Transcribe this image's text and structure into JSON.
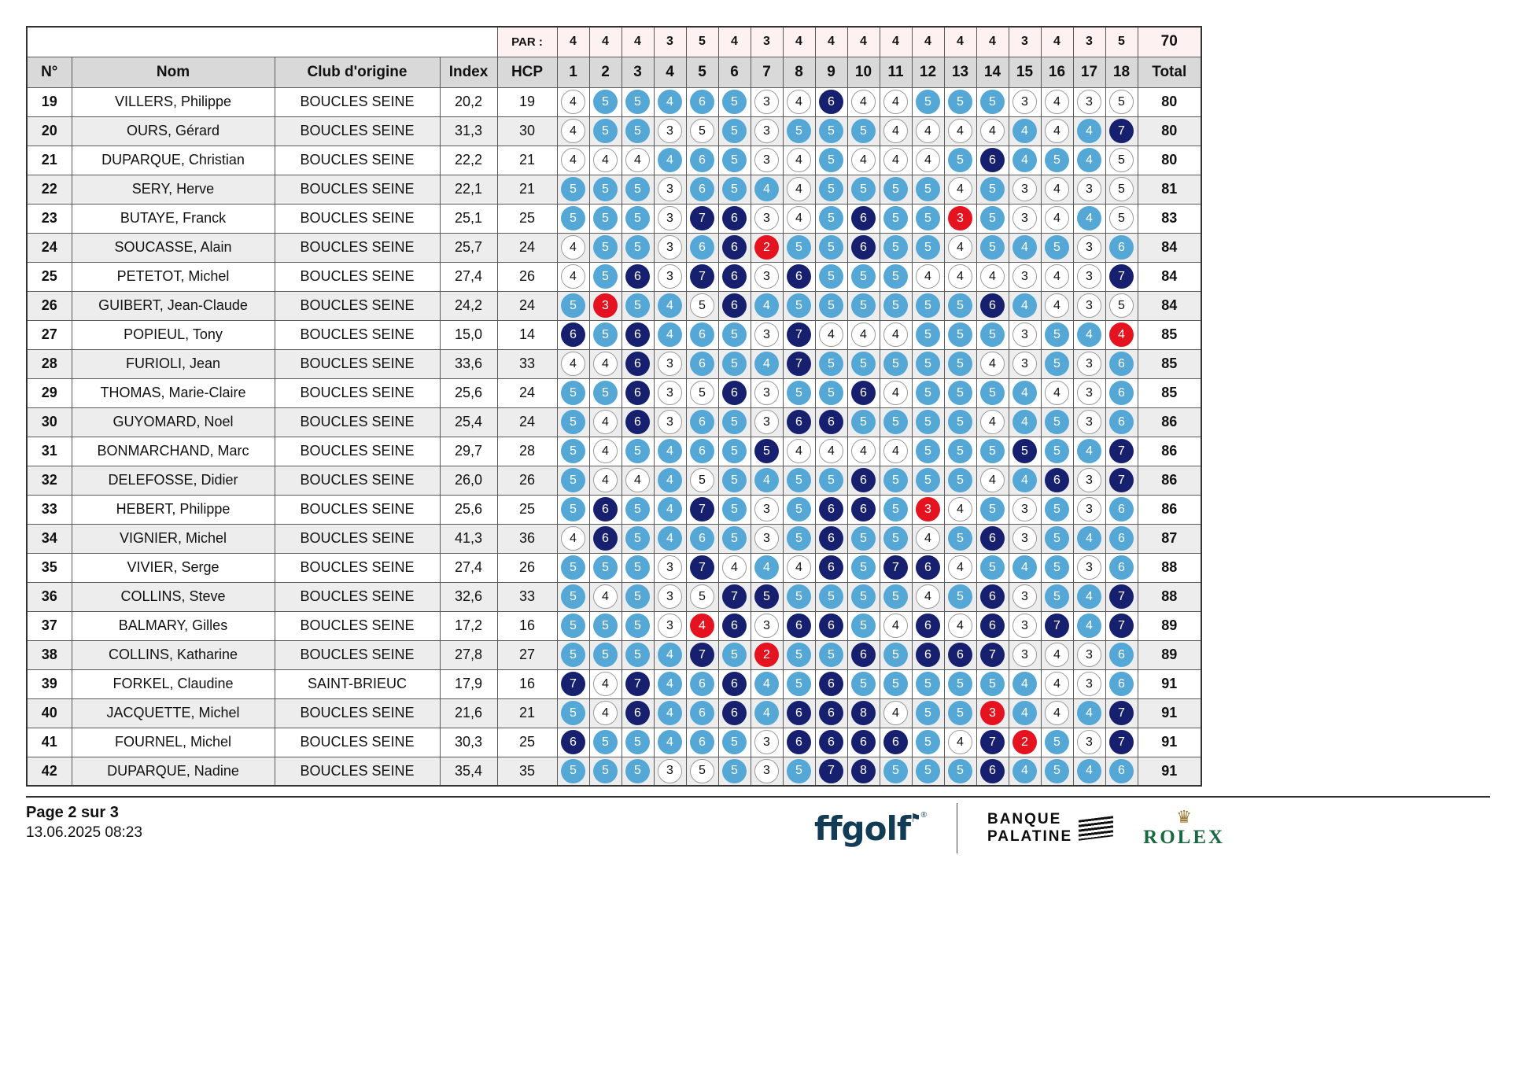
{
  "theme": {
    "bogey": "#55a7d6",
    "double": "#16206e",
    "birdie": "#e4131f",
    "parbg": "#fdf1f1",
    "headbg": "#d9d9d9",
    "grid": "#5a5a5a",
    "ffgolf": "#123c55",
    "rolex": "#1a6840",
    "gold": "#96762e"
  },
  "table": {
    "par_label": "PAR :",
    "par_values": [
      4,
      4,
      4,
      3,
      5,
      4,
      3,
      4,
      4,
      4,
      4,
      4,
      4,
      4,
      3,
      4,
      3,
      5
    ],
    "par_total": 70,
    "columns": [
      "N°",
      "Nom",
      "Club d'origine",
      "Index",
      "HCP",
      "1",
      "2",
      "3",
      "4",
      "5",
      "6",
      "7",
      "8",
      "9",
      "10",
      "11",
      "12",
      "13",
      "14",
      "15",
      "16",
      "17",
      "18",
      "Total"
    ],
    "rows": [
      {
        "num": 19,
        "name": "VILLERS, Philippe",
        "club": "BOUCLES SEINE",
        "index": "20,2",
        "hcp": 19,
        "scores": [
          4,
          5,
          5,
          4,
          6,
          5,
          3,
          4,
          6,
          4,
          4,
          5,
          5,
          5,
          3,
          4,
          3,
          5
        ],
        "total": 80
      },
      {
        "num": 20,
        "name": "OURS, Gérard",
        "club": "BOUCLES SEINE",
        "index": "31,3",
        "hcp": 30,
        "scores": [
          4,
          5,
          5,
          3,
          5,
          5,
          3,
          5,
          5,
          5,
          4,
          4,
          4,
          4,
          4,
          4,
          4,
          7
        ],
        "total": 80
      },
      {
        "num": 21,
        "name": "DUPARQUE, Christian",
        "club": "BOUCLES SEINE",
        "index": "22,2",
        "hcp": 21,
        "scores": [
          4,
          4,
          4,
          4,
          6,
          5,
          3,
          4,
          5,
          4,
          4,
          4,
          5,
          6,
          4,
          5,
          4,
          5
        ],
        "total": 80
      },
      {
        "num": 22,
        "name": "SERY, Herve",
        "club": "BOUCLES SEINE",
        "index": "22,1",
        "hcp": 21,
        "scores": [
          5,
          5,
          5,
          3,
          6,
          5,
          4,
          4,
          5,
          5,
          5,
          5,
          4,
          5,
          3,
          4,
          3,
          5
        ],
        "total": 81
      },
      {
        "num": 23,
        "name": "BUTAYE, Franck",
        "club": "BOUCLES SEINE",
        "index": "25,1",
        "hcp": 25,
        "scores": [
          5,
          5,
          5,
          3,
          7,
          6,
          3,
          4,
          5,
          6,
          5,
          5,
          3,
          5,
          3,
          4,
          4,
          5
        ],
        "total": 83
      },
      {
        "num": 24,
        "name": "SOUCASSE, Alain",
        "club": "BOUCLES SEINE",
        "index": "25,7",
        "hcp": 24,
        "scores": [
          4,
          5,
          5,
          3,
          6,
          6,
          2,
          5,
          5,
          6,
          5,
          5,
          4,
          5,
          4,
          5,
          3,
          6
        ],
        "total": 84
      },
      {
        "num": 25,
        "name": "PETETOT, Michel",
        "club": "BOUCLES SEINE",
        "index": "27,4",
        "hcp": 26,
        "scores": [
          4,
          5,
          6,
          3,
          7,
          6,
          3,
          6,
          5,
          5,
          5,
          4,
          4,
          4,
          3,
          4,
          3,
          7
        ],
        "total": 84
      },
      {
        "num": 26,
        "name": "GUIBERT, Jean-Claude",
        "club": "BOUCLES SEINE",
        "index": "24,2",
        "hcp": 24,
        "scores": [
          5,
          3,
          5,
          4,
          5,
          6,
          4,
          5,
          5,
          5,
          5,
          5,
          5,
          6,
          4,
          4,
          3,
          5
        ],
        "total": 84
      },
      {
        "num": 27,
        "name": "POPIEUL, Tony",
        "club": "BOUCLES SEINE",
        "index": "15,0",
        "hcp": 14,
        "scores": [
          6,
          5,
          6,
          4,
          6,
          5,
          3,
          7,
          4,
          4,
          4,
          5,
          5,
          5,
          3,
          5,
          4,
          4
        ],
        "total": 85
      },
      {
        "num": 28,
        "name": "FURIOLI, Jean",
        "club": "BOUCLES SEINE",
        "index": "33,6",
        "hcp": 33,
        "scores": [
          4,
          4,
          6,
          3,
          6,
          5,
          4,
          7,
          5,
          5,
          5,
          5,
          5,
          4,
          3,
          5,
          3,
          6
        ],
        "total": 85
      },
      {
        "num": 29,
        "name": "THOMAS, Marie-Claire",
        "club": "BOUCLES SEINE",
        "index": "25,6",
        "hcp": 24,
        "scores": [
          5,
          5,
          6,
          3,
          5,
          6,
          3,
          5,
          5,
          6,
          4,
          5,
          5,
          5,
          4,
          4,
          3,
          6
        ],
        "total": 85
      },
      {
        "num": 30,
        "name": "GUYOMARD, Noel",
        "club": "BOUCLES SEINE",
        "index": "25,4",
        "hcp": 24,
        "scores": [
          5,
          4,
          6,
          3,
          6,
          5,
          3,
          6,
          6,
          5,
          5,
          5,
          5,
          4,
          4,
          5,
          3,
          6
        ],
        "total": 86
      },
      {
        "num": 31,
        "name": "BONMARCHAND, Marc",
        "club": "BOUCLES SEINE",
        "index": "29,7",
        "hcp": 28,
        "scores": [
          5,
          4,
          5,
          4,
          6,
          5,
          5,
          4,
          4,
          4,
          4,
          5,
          5,
          5,
          5,
          5,
          4,
          7
        ],
        "total": 86
      },
      {
        "num": 32,
        "name": "DELEFOSSE, Didier",
        "club": "BOUCLES SEINE",
        "index": "26,0",
        "hcp": 26,
        "scores": [
          5,
          4,
          4,
          4,
          5,
          5,
          4,
          5,
          5,
          6,
          5,
          5,
          5,
          4,
          4,
          6,
          3,
          7
        ],
        "total": 86
      },
      {
        "num": 33,
        "name": "HEBERT, Philippe",
        "club": "BOUCLES SEINE",
        "index": "25,6",
        "hcp": 25,
        "scores": [
          5,
          6,
          5,
          4,
          7,
          5,
          3,
          5,
          6,
          6,
          5,
          3,
          4,
          5,
          3,
          5,
          3,
          6
        ],
        "total": 86
      },
      {
        "num": 34,
        "name": "VIGNIER, Michel",
        "club": "BOUCLES SEINE",
        "index": "41,3",
        "hcp": 36,
        "scores": [
          4,
          6,
          5,
          4,
          6,
          5,
          3,
          5,
          6,
          5,
          5,
          4,
          5,
          6,
          3,
          5,
          4,
          6
        ],
        "total": 87
      },
      {
        "num": 35,
        "name": "VIVIER, Serge",
        "club": "BOUCLES SEINE",
        "index": "27,4",
        "hcp": 26,
        "scores": [
          5,
          5,
          5,
          3,
          7,
          4,
          4,
          4,
          6,
          5,
          7,
          6,
          4,
          5,
          4,
          5,
          3,
          6
        ],
        "total": 88
      },
      {
        "num": 36,
        "name": "COLLINS, Steve",
        "club": "BOUCLES SEINE",
        "index": "32,6",
        "hcp": 33,
        "scores": [
          5,
          4,
          5,
          3,
          5,
          7,
          5,
          5,
          5,
          5,
          5,
          4,
          5,
          6,
          3,
          5,
          4,
          7
        ],
        "total": 88
      },
      {
        "num": 37,
        "name": "BALMARY, Gilles",
        "club": "BOUCLES SEINE",
        "index": "17,2",
        "hcp": 16,
        "scores": [
          5,
          5,
          5,
          3,
          4,
          6,
          3,
          6,
          6,
          5,
          4,
          6,
          4,
          6,
          3,
          7,
          4,
          7
        ],
        "total": 89
      },
      {
        "num": 38,
        "name": "COLLINS, Katharine",
        "club": "BOUCLES SEINE",
        "index": "27,8",
        "hcp": 27,
        "scores": [
          5,
          5,
          5,
          4,
          7,
          5,
          2,
          5,
          5,
          6,
          5,
          6,
          6,
          7,
          3,
          4,
          3,
          6
        ],
        "total": 89
      },
      {
        "num": 39,
        "name": "FORKEL, Claudine",
        "club": "SAINT-BRIEUC",
        "index": "17,9",
        "hcp": 16,
        "scores": [
          7,
          4,
          7,
          4,
          6,
          6,
          4,
          5,
          6,
          5,
          5,
          5,
          5,
          5,
          4,
          4,
          3,
          6
        ],
        "total": 91
      },
      {
        "num": 40,
        "name": "JACQUETTE, Michel",
        "club": "BOUCLES SEINE",
        "index": "21,6",
        "hcp": 21,
        "scores": [
          5,
          4,
          6,
          4,
          6,
          6,
          4,
          6,
          6,
          8,
          4,
          5,
          5,
          3,
          4,
          4,
          4,
          7
        ],
        "total": 91
      },
      {
        "num": 41,
        "name": "FOURNEL, Michel",
        "club": "BOUCLES SEINE",
        "index": "30,3",
        "hcp": 25,
        "scores": [
          6,
          5,
          5,
          4,
          6,
          5,
          3,
          6,
          6,
          6,
          6,
          5,
          4,
          7,
          2,
          5,
          3,
          7
        ],
        "total": 91
      },
      {
        "num": 42,
        "name": "DUPARQUE, Nadine",
        "club": "BOUCLES SEINE",
        "index": "35,4",
        "hcp": 35,
        "scores": [
          5,
          5,
          5,
          3,
          5,
          5,
          3,
          5,
          7,
          8,
          5,
          5,
          5,
          6,
          4,
          5,
          4,
          6
        ],
        "total": 91
      }
    ]
  },
  "footer": {
    "page_info": "Page 2 sur 3",
    "timestamp": "13.06.2025 08:23",
    "logos": {
      "ffgolf": "ffgolf",
      "palatine_line1": "BANQUE",
      "palatine_line2": "PALATINE",
      "rolex": "ROLEX"
    }
  }
}
